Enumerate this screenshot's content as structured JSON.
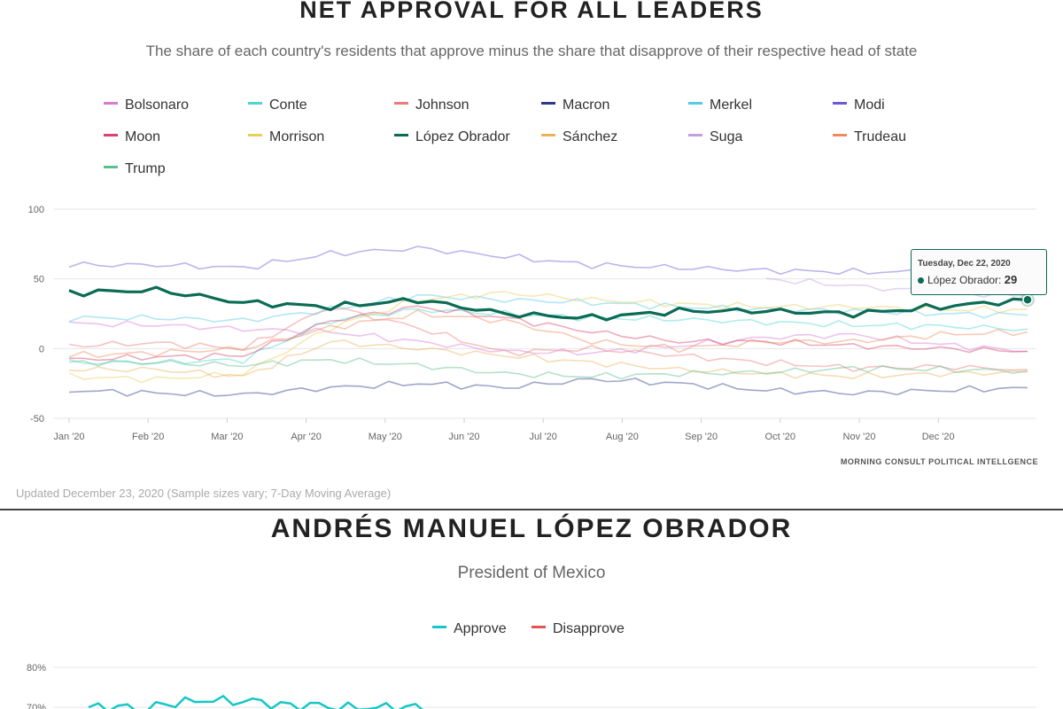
{
  "net_panel": {
    "title": "NET APPROVAL FOR ALL LEADERS",
    "subtitle": "The share of each country's residents that approve minus the share that disapprove of their respective head of state",
    "source": "MORNING CONSULT POLITICAL INTELLGENCE",
    "updated": "Updated December 23, 2020 (Sample sizes vary; 7-Day Moving Average)",
    "tooltip": {
      "date": "Tuesday, Dec 22, 2020",
      "series": "López Obrador:",
      "value": "29"
    }
  },
  "leader_panel": {
    "title": "ANDRÉS MANUEL LÓPEZ OBRADOR",
    "subtitle": "President of Mexico",
    "legend": [
      {
        "name": "Approve",
        "color": "#17c6c6"
      },
      {
        "name": "Disapprove",
        "color": "#e05555"
      }
    ]
  },
  "chart_data": [
    {
      "type": "line",
      "x": [
        "Jan '20",
        "Feb '20",
        "Mar '20",
        "Apr '20",
        "May '20",
        "Jun '20",
        "Jul '20",
        "Aug '20",
        "Sep '20",
        "Oct '20",
        "Nov '20",
        "Dec '20"
      ],
      "yticks": [
        "100",
        "50",
        "0",
        "-50"
      ],
      "ylim": [
        -50,
        100
      ],
      "grid": true,
      "legend_position": "top",
      "highlighted_series": "López Obrador",
      "series": [
        {
          "name": "Bolsonaro",
          "color": "#d77bd4",
          "values": [
            18,
            17,
            14,
            12,
            5,
            -2,
            -3,
            2,
            8,
            10,
            3,
            -2
          ]
        },
        {
          "name": "Conte",
          "color": "#4ad6d1",
          "values": [
            -10,
            -10,
            -8,
            20,
            28,
            25,
            22,
            21,
            19,
            17,
            16,
            14
          ]
        },
        {
          "name": "Johnson",
          "color": "#ec7b7b",
          "values": [
            2,
            4,
            0,
            30,
            15,
            -3,
            0,
            -5,
            -10,
            -14,
            -13,
            -15
          ]
        },
        {
          "name": "Macron",
          "color": "#2d3a8a",
          "values": [
            -30,
            -32,
            -33,
            -28,
            -25,
            -28,
            -22,
            -25,
            -30,
            -32,
            -30,
            -28
          ]
        },
        {
          "name": "Merkel",
          "color": "#56c8e8",
          "values": [
            22,
            22,
            20,
            28,
            38,
            35,
            33,
            30,
            28,
            27,
            25,
            24
          ]
        },
        {
          "name": "Modi",
          "color": "#6b5bd6",
          "values": [
            60,
            60,
            58,
            68,
            72,
            66,
            60,
            58,
            56,
            55,
            55,
            56
          ]
        },
        {
          "name": "Moon",
          "color": "#d8446a",
          "values": [
            -8,
            -6,
            -5,
            20,
            30,
            22,
            12,
            5,
            5,
            2,
            0,
            -2
          ]
        },
        {
          "name": "Morrison",
          "color": "#e6cf5a",
          "values": [
            -20,
            -22,
            -18,
            15,
            35,
            40,
            35,
            32,
            30,
            30,
            28,
            28
          ]
        },
        {
          "name": "López Obrador",
          "color": "#0b6b55",
          "values": [
            40,
            42,
            33,
            30,
            35,
            25,
            22,
            27,
            27,
            25,
            30,
            35
          ]
        },
        {
          "name": "Sánchez",
          "color": "#ebb25b",
          "values": [
            -15,
            -15,
            -20,
            5,
            0,
            -5,
            -10,
            -15,
            -18,
            -20,
            -18,
            -17
          ]
        },
        {
          "name": "Suga",
          "color": "#c39fe0",
          "values": [
            null,
            null,
            null,
            null,
            null,
            null,
            null,
            null,
            50,
            45,
            40,
            38
          ]
        },
        {
          "name": "Trudeau",
          "color": "#f08a5d",
          "values": [
            -5,
            -3,
            0,
            15,
            25,
            20,
            5,
            0,
            5,
            5,
            10,
            12
          ]
        },
        {
          "name": "Trump",
          "color": "#5bbf8a",
          "values": [
            -10,
            -10,
            -12,
            -8,
            -12,
            -18,
            -20,
            -18,
            -17,
            -14,
            -15,
            -16
          ]
        }
      ]
    },
    {
      "type": "line",
      "yticks": [
        "80%",
        "70%"
      ],
      "ylim": [
        60,
        80
      ],
      "grid": true,
      "series": [
        {
          "name": "Approve",
          "color": "#17c6c6",
          "values": [
            70,
            70,
            72,
            71,
            70,
            70
          ]
        },
        {
          "name": "Disapprove",
          "color": "#e05555",
          "values": []
        }
      ]
    }
  ]
}
